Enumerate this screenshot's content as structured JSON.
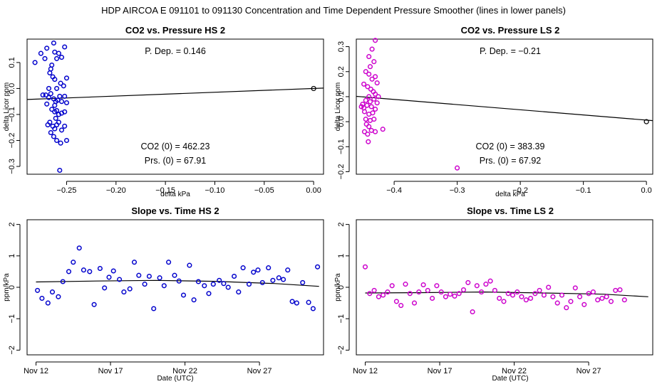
{
  "main_title": "HDP   AIRCOA E   091101 to 091130   Concentration and Time Dependent Pressure Smoother (lines in lower panels)",
  "colors": {
    "hs": "#0000cc",
    "ls": "#cc00cc",
    "axis": "#000000"
  },
  "chart_data": [
    {
      "id": "hs-scatter",
      "type": "scatter",
      "title": "CO2 vs. Pressure HS 2",
      "xlabel": "delta kPa",
      "ylabel": "delta Licor ppm",
      "xlim": [
        -0.29,
        0.01
      ],
      "ylim": [
        -0.33,
        0.19
      ],
      "xticks": [
        -0.25,
        -0.2,
        -0.15,
        -0.1,
        -0.05,
        0.0
      ],
      "xtick_labels": [
        "−0.25",
        "−0.20",
        "−0.15",
        "−0.10",
        "−0.05",
        "0.00"
      ],
      "yticks": [
        -0.3,
        -0.2,
        -0.1,
        0.0,
        0.1
      ],
      "ytick_labels": [
        "−0.3",
        "−0.2",
        "−0.1",
        "0.0",
        "0.1"
      ],
      "color": "#0000cc",
      "annotations": {
        "pdep": "P. Dep. =  0.146",
        "co2_0": "CO2 (0) =  462.23",
        "prs_0": "Prs. (0) =  67.91"
      },
      "fit_line": {
        "x": [
          -0.29,
          0.01
        ],
        "y": [
          -0.0423,
          0.0015
        ]
      },
      "reference_point": {
        "x": 0.0,
        "y": 0.0
      },
      "points": [
        [
          -0.282,
          0.1
        ],
        [
          -0.276,
          0.135
        ],
        [
          -0.272,
          0.115
        ],
        [
          -0.27,
          0.155
        ],
        [
          -0.267,
          0.06
        ],
        [
          -0.265,
          0.09
        ],
        [
          -0.263,
          0.175
        ],
        [
          -0.262,
          0.14
        ],
        [
          -0.26,
          0.115
        ],
        [
          -0.258,
          0.135
        ],
        [
          -0.255,
          0.12
        ],
        [
          -0.252,
          0.16
        ],
        [
          -0.25,
          0.04
        ],
        [
          -0.266,
          0.075
        ],
        [
          -0.264,
          0.045
        ],
        [
          -0.262,
          0.035
        ],
        [
          -0.26,
          0.0
        ],
        [
          -0.256,
          0.02
        ],
        [
          -0.253,
          0.01
        ],
        [
          -0.271,
          -0.025
        ],
        [
          -0.268,
          -0.035
        ],
        [
          -0.266,
          -0.02
        ],
        [
          -0.263,
          -0.04
        ],
        [
          -0.261,
          -0.05
        ],
        [
          -0.259,
          -0.045
        ],
        [
          -0.257,
          -0.03
        ],
        [
          -0.255,
          -0.05
        ],
        [
          -0.252,
          -0.03
        ],
        [
          -0.25,
          -0.055
        ],
        [
          -0.27,
          -0.06
        ],
        [
          -0.265,
          -0.08
        ],
        [
          -0.262,
          -0.09
        ],
        [
          -0.26,
          -0.085
        ],
        [
          -0.258,
          -0.1
        ],
        [
          -0.255,
          -0.095
        ],
        [
          -0.252,
          -0.09
        ],
        [
          -0.267,
          -0.13
        ],
        [
          -0.264,
          -0.145
        ],
        [
          -0.262,
          -0.155
        ],
        [
          -0.26,
          -0.14
        ],
        [
          -0.258,
          -0.13
        ],
        [
          -0.255,
          -0.16
        ],
        [
          -0.252,
          -0.145
        ],
        [
          -0.266,
          -0.17
        ],
        [
          -0.263,
          -0.185
        ],
        [
          -0.26,
          -0.2
        ],
        [
          -0.256,
          -0.21
        ],
        [
          -0.25,
          -0.2
        ],
        [
          -0.257,
          -0.315
        ],
        [
          -0.274,
          -0.025
        ],
        [
          -0.269,
          -0.14
        ],
        [
          -0.261,
          -0.115
        ],
        [
          -0.268,
          0.0
        ],
        [
          -0.262,
          -0.065
        ]
      ]
    },
    {
      "id": "ls-scatter",
      "type": "scatter",
      "title": "CO2 vs. Pressure LS 2",
      "xlabel": "delta kPa",
      "ylabel": "delta Licor ppm",
      "xlim": [
        -0.46,
        0.01
      ],
      "ylim": [
        -0.21,
        0.33
      ],
      "xticks": [
        -0.4,
        -0.3,
        -0.2,
        -0.1,
        0.0
      ],
      "xtick_labels": [
        "−0.4",
        "−0.3",
        "−0.2",
        "−0.1",
        "0.0"
      ],
      "yticks": [
        -0.2,
        -0.1,
        0.0,
        0.1,
        0.2,
        0.3
      ],
      "ytick_labels": [
        "−0.2",
        "−0.1",
        "0.0",
        "0.1",
        "0.2",
        "0.3"
      ],
      "color": "#cc00cc",
      "annotations": {
        "pdep": "P. Dep. =  −0.21",
        "co2_0": "CO2 (0) =  383.39",
        "prs_0": "Prs. (0) =  67.92"
      },
      "fit_line": {
        "x": [
          -0.46,
          0.01
        ],
        "y": [
          0.1013,
          0.0042
        ]
      },
      "reference_point": {
        "x": 0.0,
        "y": 0.0
      },
      "points": [
        [
          -0.43,
          0.325
        ],
        [
          -0.435,
          0.29
        ],
        [
          -0.44,
          0.26
        ],
        [
          -0.432,
          0.24
        ],
        [
          -0.438,
          0.22
        ],
        [
          -0.445,
          0.2
        ],
        [
          -0.44,
          0.19
        ],
        [
          -0.435,
          0.17
        ],
        [
          -0.43,
          0.18
        ],
        [
          -0.427,
          0.155
        ],
        [
          -0.448,
          0.15
        ],
        [
          -0.442,
          0.14
        ],
        [
          -0.437,
          0.13
        ],
        [
          -0.433,
          0.12
        ],
        [
          -0.43,
          0.11
        ],
        [
          -0.44,
          0.1
        ],
        [
          -0.445,
          0.085
        ],
        [
          -0.438,
          0.08
        ],
        [
          -0.432,
          0.09
        ],
        [
          -0.427,
          0.075
        ],
        [
          -0.452,
          0.06
        ],
        [
          -0.448,
          0.055
        ],
        [
          -0.443,
          0.065
        ],
        [
          -0.436,
          0.06
        ],
        [
          -0.43,
          0.05
        ],
        [
          -0.447,
          0.04
        ],
        [
          -0.44,
          0.03
        ],
        [
          -0.434,
          0.035
        ],
        [
          -0.445,
          0.01
        ],
        [
          -0.438,
          0.005
        ],
        [
          -0.432,
          0.01
        ],
        [
          -0.444,
          -0.01
        ],
        [
          -0.44,
          -0.02
        ],
        [
          -0.447,
          -0.04
        ],
        [
          -0.442,
          -0.05
        ],
        [
          -0.436,
          -0.035
        ],
        [
          -0.43,
          -0.04
        ],
        [
          -0.441,
          -0.08
        ],
        [
          -0.418,
          -0.03
        ],
        [
          -0.3,
          -0.185
        ],
        [
          -0.45,
          0.07
        ],
        [
          -0.425,
          0.1
        ]
      ]
    },
    {
      "id": "hs-slope",
      "type": "scatter",
      "title": "Slope vs. Time HS 2",
      "xlabel": "Date (UTC)",
      "ylabel": "ppm/kPa",
      "xlim": [
        11.4,
        31.3
      ],
      "ylim": [
        -2.15,
        2.15
      ],
      "xticks": [
        12,
        17,
        22,
        27
      ],
      "xtick_labels": [
        "Nov 12",
        "Nov 17",
        "Nov 22",
        "Nov 27"
      ],
      "yticks": [
        -2,
        -1,
        0,
        1,
        2
      ],
      "ytick_labels": [
        "−2",
        "−1",
        "0",
        "1",
        "2"
      ],
      "color": "#0000cc",
      "smoother": {
        "x": [
          12,
          16,
          20,
          24,
          28,
          31
        ],
        "y": [
          0.17,
          0.2,
          0.22,
          0.19,
          0.12,
          0.03
        ]
      },
      "points": [
        [
          12.1,
          -0.1
        ],
        [
          12.4,
          -0.35
        ],
        [
          12.8,
          -0.5
        ],
        [
          13.1,
          -0.15
        ],
        [
          13.5,
          -0.3
        ],
        [
          13.8,
          0.18
        ],
        [
          14.2,
          0.5
        ],
        [
          14.5,
          0.8
        ],
        [
          14.9,
          1.25
        ],
        [
          15.2,
          0.55
        ],
        [
          15.6,
          0.5
        ],
        [
          15.9,
          -0.55
        ],
        [
          16.3,
          0.6
        ],
        [
          16.6,
          -0.02
        ],
        [
          16.9,
          0.32
        ],
        [
          17.2,
          0.52
        ],
        [
          17.6,
          0.25
        ],
        [
          17.9,
          -0.15
        ],
        [
          18.3,
          -0.05
        ],
        [
          18.6,
          0.8
        ],
        [
          18.9,
          0.38
        ],
        [
          19.3,
          0.1
        ],
        [
          19.6,
          0.35
        ],
        [
          19.9,
          -0.68
        ],
        [
          20.3,
          0.3
        ],
        [
          20.6,
          0.05
        ],
        [
          20.9,
          0.8
        ],
        [
          21.3,
          0.38
        ],
        [
          21.6,
          0.2
        ],
        [
          21.9,
          -0.25
        ],
        [
          22.3,
          0.7
        ],
        [
          22.6,
          -0.4
        ],
        [
          22.9,
          0.18
        ],
        [
          23.3,
          0.05
        ],
        [
          23.6,
          -0.2
        ],
        [
          23.9,
          0.1
        ],
        [
          24.3,
          0.22
        ],
        [
          24.6,
          0.12
        ],
        [
          24.9,
          0.0
        ],
        [
          25.3,
          0.35
        ],
        [
          25.6,
          -0.15
        ],
        [
          25.9,
          0.62
        ],
        [
          26.3,
          0.1
        ],
        [
          26.6,
          0.48
        ],
        [
          26.9,
          0.55
        ],
        [
          27.2,
          0.15
        ],
        [
          27.6,
          0.62
        ],
        [
          27.9,
          0.22
        ],
        [
          28.3,
          0.3
        ],
        [
          28.6,
          0.25
        ],
        [
          28.9,
          0.55
        ],
        [
          29.2,
          -0.45
        ],
        [
          29.5,
          -0.5
        ],
        [
          29.9,
          0.15
        ],
        [
          30.3,
          -0.48
        ],
        [
          30.6,
          -0.68
        ],
        [
          30.9,
          0.65
        ]
      ]
    },
    {
      "id": "ls-slope",
      "type": "scatter",
      "title": "Slope vs. Time LS 2",
      "xlabel": "Date (UTC)",
      "ylabel": "ppm/kPa",
      "xlim": [
        11.4,
        31.3
      ],
      "ylim": [
        -2.15,
        2.15
      ],
      "xticks": [
        12,
        17,
        22,
        27
      ],
      "xtick_labels": [
        "Nov 12",
        "Nov 17",
        "Nov 22",
        "Nov 27"
      ],
      "yticks": [
        -2,
        -1,
        0,
        1,
        2
      ],
      "ytick_labels": [
        "−2",
        "−1",
        "0",
        "1",
        "2"
      ],
      "color": "#cc00cc",
      "smoother": {
        "x": [
          12,
          16,
          20,
          24,
          28,
          31
        ],
        "y": [
          -0.18,
          -0.17,
          -0.15,
          -0.18,
          -0.22,
          -0.3
        ]
      },
      "points": [
        [
          12.0,
          0.65
        ],
        [
          12.3,
          -0.2
        ],
        [
          12.6,
          -0.1
        ],
        [
          12.9,
          -0.3
        ],
        [
          13.2,
          -0.25
        ],
        [
          13.5,
          -0.15
        ],
        [
          13.8,
          0.05
        ],
        [
          14.1,
          -0.45
        ],
        [
          14.4,
          -0.58
        ],
        [
          14.7,
          0.1
        ],
        [
          15.0,
          -0.2
        ],
        [
          15.3,
          -0.5
        ],
        [
          15.6,
          -0.15
        ],
        [
          15.9,
          0.08
        ],
        [
          16.2,
          -0.1
        ],
        [
          16.5,
          -0.35
        ],
        [
          16.8,
          0.05
        ],
        [
          17.1,
          -0.15
        ],
        [
          17.4,
          -0.3
        ],
        [
          17.7,
          -0.22
        ],
        [
          18.0,
          -0.28
        ],
        [
          18.3,
          -0.2
        ],
        [
          18.6,
          -0.08
        ],
        [
          18.9,
          0.15
        ],
        [
          19.2,
          -0.78
        ],
        [
          19.5,
          0.05
        ],
        [
          19.8,
          -0.15
        ],
        [
          20.1,
          0.1
        ],
        [
          20.4,
          0.2
        ],
        [
          20.7,
          -0.1
        ],
        [
          21.0,
          -0.35
        ],
        [
          21.3,
          -0.45
        ],
        [
          21.6,
          -0.2
        ],
        [
          21.9,
          -0.25
        ],
        [
          22.2,
          -0.15
        ],
        [
          22.5,
          -0.3
        ],
        [
          22.8,
          -0.4
        ],
        [
          23.1,
          -0.35
        ],
        [
          23.4,
          -0.2
        ],
        [
          23.7,
          -0.1
        ],
        [
          24.0,
          -0.25
        ],
        [
          24.3,
          0.0
        ],
        [
          24.6,
          -0.3
        ],
        [
          24.9,
          -0.5
        ],
        [
          25.2,
          -0.25
        ],
        [
          25.5,
          -0.65
        ],
        [
          25.8,
          -0.45
        ],
        [
          26.1,
          -0.02
        ],
        [
          26.4,
          -0.3
        ],
        [
          26.7,
          -0.55
        ],
        [
          27.0,
          -0.2
        ],
        [
          27.3,
          -0.15
        ],
        [
          27.6,
          -0.4
        ],
        [
          27.9,
          -0.35
        ],
        [
          28.2,
          -0.3
        ],
        [
          28.5,
          -0.45
        ],
        [
          28.8,
          -0.1
        ],
        [
          29.1,
          -0.08
        ],
        [
          29.4,
          -0.4
        ]
      ]
    }
  ]
}
